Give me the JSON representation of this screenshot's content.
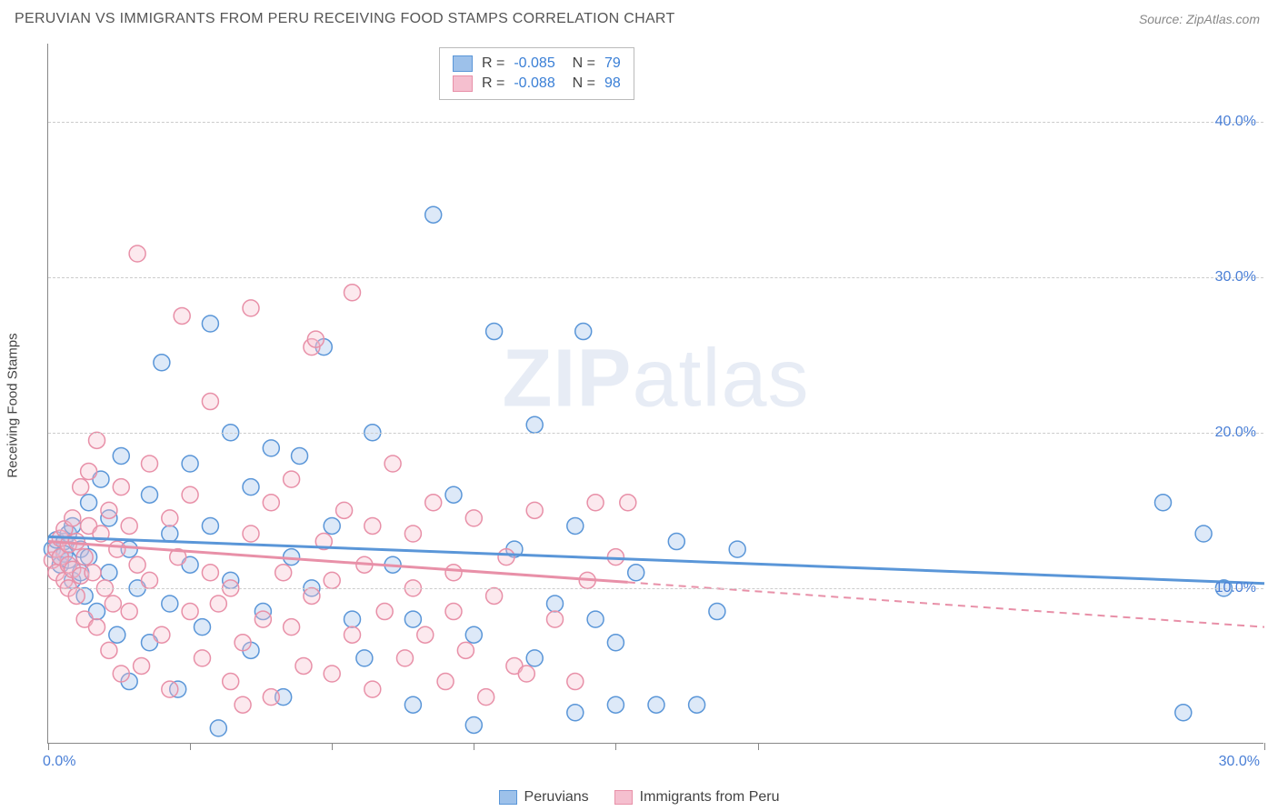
{
  "title": "PERUVIAN VS IMMIGRANTS FROM PERU RECEIVING FOOD STAMPS CORRELATION CHART",
  "source": "Source: ZipAtlas.com",
  "watermark": {
    "bold": "ZIP",
    "rest": "atlas"
  },
  "y_axis_label": "Receiving Food Stamps",
  "chart": {
    "type": "scatter",
    "background_color": "#ffffff",
    "grid_color": "#cccccc",
    "axis_color": "#888888",
    "tick_label_color": "#4a7fd6",
    "xlim": [
      0,
      30
    ],
    "ylim": [
      0,
      45
    ],
    "x_ticks": [
      0,
      3.5,
      7,
      10.5,
      14,
      17.5,
      30
    ],
    "x_tick_labels": {
      "0": "0.0%",
      "30": "30.0%"
    },
    "y_gridlines": [
      10,
      20,
      30,
      40
    ],
    "y_tick_labels": {
      "10": "10.0%",
      "20": "20.0%",
      "30": "30.0%",
      "40": "40.0%"
    },
    "marker_radius": 9,
    "marker_stroke_width": 1.5,
    "marker_fill_opacity": 0.35,
    "line_width_solid": 3,
    "line_width_dash": 2
  },
  "series": [
    {
      "name": "Peruvians",
      "color_stroke": "#5a96d8",
      "color_fill": "#9dc1ea",
      "R": "-0.085",
      "N": "79",
      "trend": {
        "x1": 0,
        "y1": 13.3,
        "x2": 30,
        "y2": 10.3,
        "extrapolate_from_x": null
      },
      "points": [
        [
          0.1,
          12.5
        ],
        [
          0.2,
          13.1
        ],
        [
          0.3,
          12.0
        ],
        [
          0.3,
          11.5
        ],
        [
          0.4,
          13.0
        ],
        [
          0.4,
          12.2
        ],
        [
          0.5,
          13.5
        ],
        [
          0.5,
          11.8
        ],
        [
          0.6,
          10.5
        ],
        [
          0.6,
          14.0
        ],
        [
          0.8,
          11.0
        ],
        [
          0.8,
          12.5
        ],
        [
          0.9,
          9.5
        ],
        [
          1.0,
          15.5
        ],
        [
          1.0,
          12.0
        ],
        [
          1.2,
          8.5
        ],
        [
          1.3,
          17.0
        ],
        [
          1.5,
          11.0
        ],
        [
          1.5,
          14.5
        ],
        [
          1.7,
          7.0
        ],
        [
          1.8,
          18.5
        ],
        [
          2.0,
          4.0
        ],
        [
          2.0,
          12.5
        ],
        [
          2.2,
          10.0
        ],
        [
          2.5,
          16.0
        ],
        [
          2.5,
          6.5
        ],
        [
          2.8,
          24.5
        ],
        [
          3.0,
          13.5
        ],
        [
          3.0,
          9.0
        ],
        [
          3.2,
          3.5
        ],
        [
          3.5,
          11.5
        ],
        [
          3.5,
          18.0
        ],
        [
          3.8,
          7.5
        ],
        [
          4.0,
          27.0
        ],
        [
          4.0,
          14.0
        ],
        [
          4.2,
          1.0
        ],
        [
          4.5,
          10.5
        ],
        [
          4.5,
          20.0
        ],
        [
          5.0,
          6.0
        ],
        [
          5.0,
          16.5
        ],
        [
          5.3,
          8.5
        ],
        [
          5.5,
          19.0
        ],
        [
          5.8,
          3.0
        ],
        [
          6.0,
          12.0
        ],
        [
          6.2,
          18.5
        ],
        [
          6.5,
          10.0
        ],
        [
          6.8,
          25.5
        ],
        [
          7.0,
          14.0
        ],
        [
          7.5,
          8.0
        ],
        [
          7.8,
          5.5
        ],
        [
          8.0,
          20.0
        ],
        [
          8.5,
          11.5
        ],
        [
          9.0,
          2.5
        ],
        [
          9.0,
          8.0
        ],
        [
          9.5,
          34.0
        ],
        [
          10.0,
          16.0
        ],
        [
          10.5,
          7.0
        ],
        [
          10.5,
          1.2
        ],
        [
          11.0,
          26.5
        ],
        [
          11.5,
          12.5
        ],
        [
          12.0,
          5.5
        ],
        [
          12.0,
          20.5
        ],
        [
          12.5,
          9.0
        ],
        [
          13.0,
          14.0
        ],
        [
          13.0,
          2.0
        ],
        [
          13.5,
          8.0
        ],
        [
          13.2,
          26.5
        ],
        [
          14.0,
          6.5
        ],
        [
          14.0,
          2.5
        ],
        [
          14.5,
          11.0
        ],
        [
          15.0,
          2.5
        ],
        [
          15.5,
          13.0
        ],
        [
          16.0,
          2.5
        ],
        [
          16.5,
          8.5
        ],
        [
          17.0,
          12.5
        ],
        [
          27.5,
          15.5
        ],
        [
          28.0,
          2.0
        ],
        [
          28.5,
          13.5
        ],
        [
          29.0,
          10.0
        ]
      ]
    },
    {
      "name": "Immigrants from Peru",
      "color_stroke": "#e890a8",
      "color_fill": "#f5bfcf",
      "R": "-0.088",
      "N": "98",
      "trend": {
        "x1": 0,
        "y1": 13.0,
        "x2": 30,
        "y2": 7.5,
        "extrapolate_from_x": 14.3
      },
      "points": [
        [
          0.1,
          11.8
        ],
        [
          0.2,
          12.5
        ],
        [
          0.2,
          11.0
        ],
        [
          0.3,
          13.2
        ],
        [
          0.3,
          12.0
        ],
        [
          0.4,
          10.5
        ],
        [
          0.4,
          13.8
        ],
        [
          0.5,
          11.5
        ],
        [
          0.5,
          12.8
        ],
        [
          0.5,
          10.0
        ],
        [
          0.6,
          14.5
        ],
        [
          0.6,
          11.2
        ],
        [
          0.7,
          9.5
        ],
        [
          0.7,
          13.0
        ],
        [
          0.8,
          16.5
        ],
        [
          0.8,
          10.8
        ],
        [
          0.9,
          12.0
        ],
        [
          0.9,
          8.0
        ],
        [
          1.0,
          14.0
        ],
        [
          1.0,
          17.5
        ],
        [
          1.1,
          11.0
        ],
        [
          1.2,
          7.5
        ],
        [
          1.2,
          19.5
        ],
        [
          1.3,
          13.5
        ],
        [
          1.4,
          10.0
        ],
        [
          1.5,
          6.0
        ],
        [
          1.5,
          15.0
        ],
        [
          1.6,
          9.0
        ],
        [
          1.7,
          12.5
        ],
        [
          1.8,
          4.5
        ],
        [
          1.8,
          16.5
        ],
        [
          2.0,
          8.5
        ],
        [
          2.0,
          14.0
        ],
        [
          2.2,
          11.5
        ],
        [
          2.2,
          31.5
        ],
        [
          2.3,
          5.0
        ],
        [
          2.5,
          18.0
        ],
        [
          2.5,
          10.5
        ],
        [
          2.8,
          7.0
        ],
        [
          3.0,
          14.5
        ],
        [
          3.0,
          3.5
        ],
        [
          3.2,
          12.0
        ],
        [
          3.3,
          27.5
        ],
        [
          3.5,
          8.5
        ],
        [
          3.5,
          16.0
        ],
        [
          3.8,
          5.5
        ],
        [
          4.0,
          11.0
        ],
        [
          4.0,
          22.0
        ],
        [
          4.2,
          9.0
        ],
        [
          4.5,
          10.0
        ],
        [
          4.5,
          4.0
        ],
        [
          4.8,
          6.5
        ],
        [
          4.8,
          2.5
        ],
        [
          5.0,
          13.5
        ],
        [
          5.0,
          28.0
        ],
        [
          5.3,
          8.0
        ],
        [
          5.5,
          15.5
        ],
        [
          5.5,
          3.0
        ],
        [
          5.8,
          11.0
        ],
        [
          6.0,
          7.5
        ],
        [
          6.0,
          17.0
        ],
        [
          6.3,
          5.0
        ],
        [
          6.5,
          25.5
        ],
        [
          6.5,
          9.5
        ],
        [
          6.6,
          26.0
        ],
        [
          6.8,
          13.0
        ],
        [
          7.0,
          4.5
        ],
        [
          7.0,
          10.5
        ],
        [
          7.3,
          15.0
        ],
        [
          7.5,
          29.0
        ],
        [
          7.5,
          7.0
        ],
        [
          7.8,
          11.5
        ],
        [
          8.0,
          3.5
        ],
        [
          8.0,
          14.0
        ],
        [
          8.3,
          8.5
        ],
        [
          8.5,
          18.0
        ],
        [
          8.8,
          5.5
        ],
        [
          9.0,
          10.0
        ],
        [
          9.0,
          13.5
        ],
        [
          9.3,
          7.0
        ],
        [
          9.5,
          15.5
        ],
        [
          9.8,
          4.0
        ],
        [
          10.0,
          11.0
        ],
        [
          10.0,
          8.5
        ],
        [
          10.3,
          6.0
        ],
        [
          10.5,
          14.5
        ],
        [
          10.8,
          3.0
        ],
        [
          11.0,
          9.5
        ],
        [
          11.3,
          12.0
        ],
        [
          11.5,
          5.0
        ],
        [
          11.8,
          4.5
        ],
        [
          12.0,
          15.0
        ],
        [
          12.5,
          8.0
        ],
        [
          13.0,
          4.0
        ],
        [
          13.3,
          10.5
        ],
        [
          13.5,
          15.5
        ],
        [
          14.0,
          12.0
        ],
        [
          14.3,
          15.5
        ]
      ]
    }
  ],
  "bottom_legend": [
    {
      "label": "Peruvians",
      "fill": "#9dc1ea",
      "stroke": "#5a96d8"
    },
    {
      "label": "Immigrants from Peru",
      "fill": "#f5bfcf",
      "stroke": "#e890a8"
    }
  ]
}
